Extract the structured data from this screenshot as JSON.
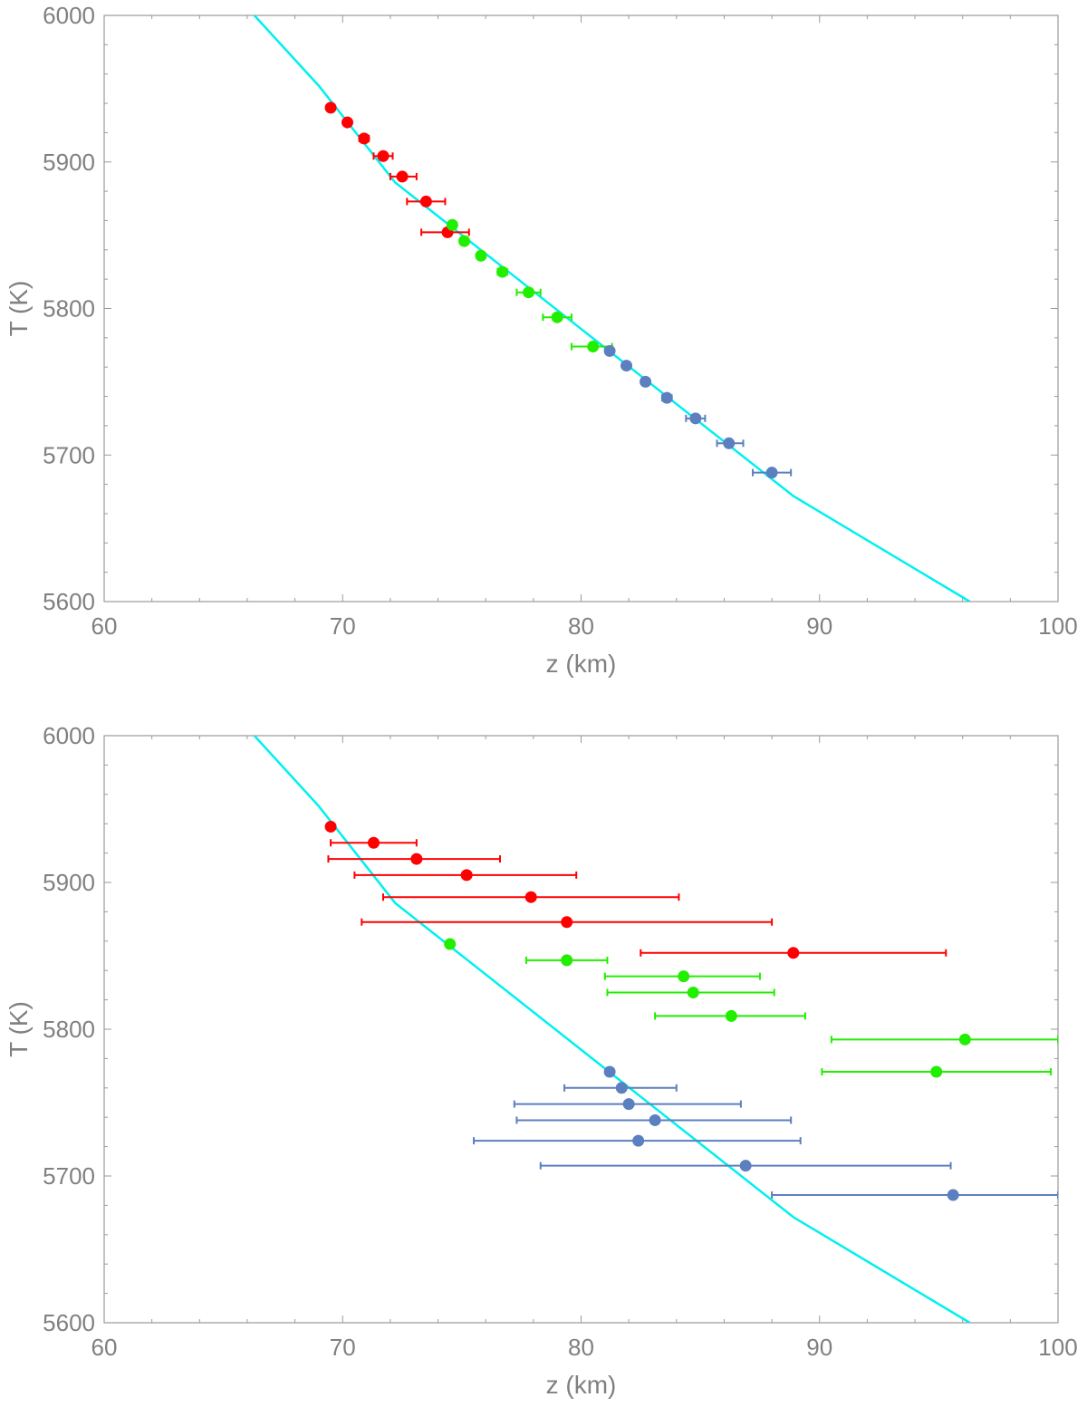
{
  "chart_data": [
    {
      "type": "scatter",
      "xlabel": "z (km)",
      "ylabel": "T (K)",
      "xlim": [
        60,
        100
      ],
      "ylim": [
        5600,
        6000
      ],
      "x_ticks": [
        "60",
        "70",
        "80",
        "90",
        "100"
      ],
      "y_ticks": [
        "5600",
        "5700",
        "5800",
        "5900",
        "6000"
      ],
      "model_curve": {
        "name": "model",
        "color": "#00f0f0",
        "points": [
          [
            66.3,
            6000
          ],
          [
            69.0,
            5952
          ],
          [
            72.2,
            5886
          ],
          [
            88.9,
            5672
          ],
          [
            96.3,
            5600
          ]
        ]
      },
      "series": [
        {
          "name": "red",
          "color": "#ff0000",
          "points": [
            {
              "z": 69.5,
              "T": 5937,
              "err_lo": 0,
              "err_hi": 0
            },
            {
              "z": 70.2,
              "T": 5927,
              "err_lo": 0,
              "err_hi": 0
            },
            {
              "z": 70.9,
              "T": 5916,
              "err_lo": 0.2,
              "err_hi": 0.2
            },
            {
              "z": 71.7,
              "T": 5904,
              "err_lo": 0.4,
              "err_hi": 0.4
            },
            {
              "z": 72.5,
              "T": 5890,
              "err_lo": 0.5,
              "err_hi": 0.6
            },
            {
              "z": 73.5,
              "T": 5873,
              "err_lo": 0.8,
              "err_hi": 0.8
            },
            {
              "z": 74.4,
              "T": 5852,
              "err_lo": 1.1,
              "err_hi": 0.9
            }
          ]
        },
        {
          "name": "green",
          "color": "#22ee00",
          "points": [
            {
              "z": 74.6,
              "T": 5857,
              "err_lo": 0,
              "err_hi": 0
            },
            {
              "z": 75.1,
              "T": 5846,
              "err_lo": 0,
              "err_hi": 0
            },
            {
              "z": 75.8,
              "T": 5836,
              "err_lo": 0,
              "err_hi": 0
            },
            {
              "z": 76.7,
              "T": 5825,
              "err_lo": 0.2,
              "err_hi": 0.2
            },
            {
              "z": 77.8,
              "T": 5811,
              "err_lo": 0.5,
              "err_hi": 0.5
            },
            {
              "z": 79.0,
              "T": 5794,
              "err_lo": 0.6,
              "err_hi": 0.6
            },
            {
              "z": 80.5,
              "T": 5774,
              "err_lo": 0.9,
              "err_hi": 0.8
            }
          ]
        },
        {
          "name": "blue",
          "color": "#5b7fbf",
          "points": [
            {
              "z": 81.2,
              "T": 5771,
              "err_lo": 0,
              "err_hi": 0
            },
            {
              "z": 81.9,
              "T": 5761,
              "err_lo": 0,
              "err_hi": 0
            },
            {
              "z": 82.7,
              "T": 5750,
              "err_lo": 0,
              "err_hi": 0
            },
            {
              "z": 83.6,
              "T": 5739,
              "err_lo": 0.2,
              "err_hi": 0.2
            },
            {
              "z": 84.8,
              "T": 5725,
              "err_lo": 0.4,
              "err_hi": 0.4
            },
            {
              "z": 86.2,
              "T": 5708,
              "err_lo": 0.5,
              "err_hi": 0.6
            },
            {
              "z": 88.0,
              "T": 5688,
              "err_lo": 0.8,
              "err_hi": 0.8
            }
          ]
        }
      ]
    },
    {
      "type": "scatter",
      "xlabel": "z (km)",
      "ylabel": "T (K)",
      "xlim": [
        60,
        100
      ],
      "ylim": [
        5600,
        6000
      ],
      "x_ticks": [
        "60",
        "70",
        "80",
        "90",
        "100"
      ],
      "y_ticks": [
        "5600",
        "5700",
        "5800",
        "5900",
        "6000"
      ],
      "model_curve": {
        "name": "model",
        "color": "#00f0f0",
        "points": [
          [
            66.3,
            6000
          ],
          [
            69.0,
            5952
          ],
          [
            72.2,
            5886
          ],
          [
            88.9,
            5672
          ],
          [
            96.3,
            5600
          ]
        ]
      },
      "series": [
        {
          "name": "red",
          "color": "#ff0000",
          "points": [
            {
              "z": 69.5,
              "T": 5938,
              "err_lo": 0,
              "err_hi": 0
            },
            {
              "z": 71.3,
              "T": 5927,
              "err_lo": 1.8,
              "err_hi": 1.8
            },
            {
              "z": 73.1,
              "T": 5916,
              "err_lo": 3.7,
              "err_hi": 3.5
            },
            {
              "z": 75.2,
              "T": 5905,
              "err_lo": 4.7,
              "err_hi": 4.6
            },
            {
              "z": 77.9,
              "T": 5890,
              "err_lo": 6.2,
              "err_hi": 6.2
            },
            {
              "z": 79.4,
              "T": 5873,
              "err_lo": 8.6,
              "err_hi": 8.6
            },
            {
              "z": 88.9,
              "T": 5852,
              "err_lo": 6.4,
              "err_hi": 6.4
            }
          ]
        },
        {
          "name": "green",
          "color": "#22ee00",
          "points": [
            {
              "z": 74.5,
              "T": 5858,
              "err_lo": 0,
              "err_hi": 0
            },
            {
              "z": 79.4,
              "T": 5847,
              "err_lo": 1.7,
              "err_hi": 1.7
            },
            {
              "z": 84.3,
              "T": 5836,
              "err_lo": 3.3,
              "err_hi": 3.2
            },
            {
              "z": 84.7,
              "T": 5825,
              "err_lo": 3.6,
              "err_hi": 3.4
            },
            {
              "z": 86.3,
              "T": 5809,
              "err_lo": 3.2,
              "err_hi": 3.1
            },
            {
              "z": 96.1,
              "T": 5793,
              "err_lo": 5.6,
              "err_hi": 3.9
            },
            {
              "z": 94.9,
              "T": 5771,
              "err_lo": 4.8,
              "err_hi": 4.8
            }
          ]
        },
        {
          "name": "blue",
          "color": "#5b7fbf",
          "points": [
            {
              "z": 81.2,
              "T": 5771,
              "err_lo": 0,
              "err_hi": 0
            },
            {
              "z": 81.7,
              "T": 5760,
              "err_lo": 2.4,
              "err_hi": 2.3
            },
            {
              "z": 82.0,
              "T": 5749,
              "err_lo": 4.8,
              "err_hi": 4.7
            },
            {
              "z": 83.1,
              "T": 5738,
              "err_lo": 5.8,
              "err_hi": 5.7
            },
            {
              "z": 82.4,
              "T": 5724,
              "err_lo": 6.9,
              "err_hi": 6.8
            },
            {
              "z": 86.9,
              "T": 5707,
              "err_lo": 8.6,
              "err_hi": 8.6
            },
            {
              "z": 95.6,
              "T": 5687,
              "err_lo": 7.6,
              "err_hi": 4.4
            }
          ]
        }
      ]
    }
  ]
}
